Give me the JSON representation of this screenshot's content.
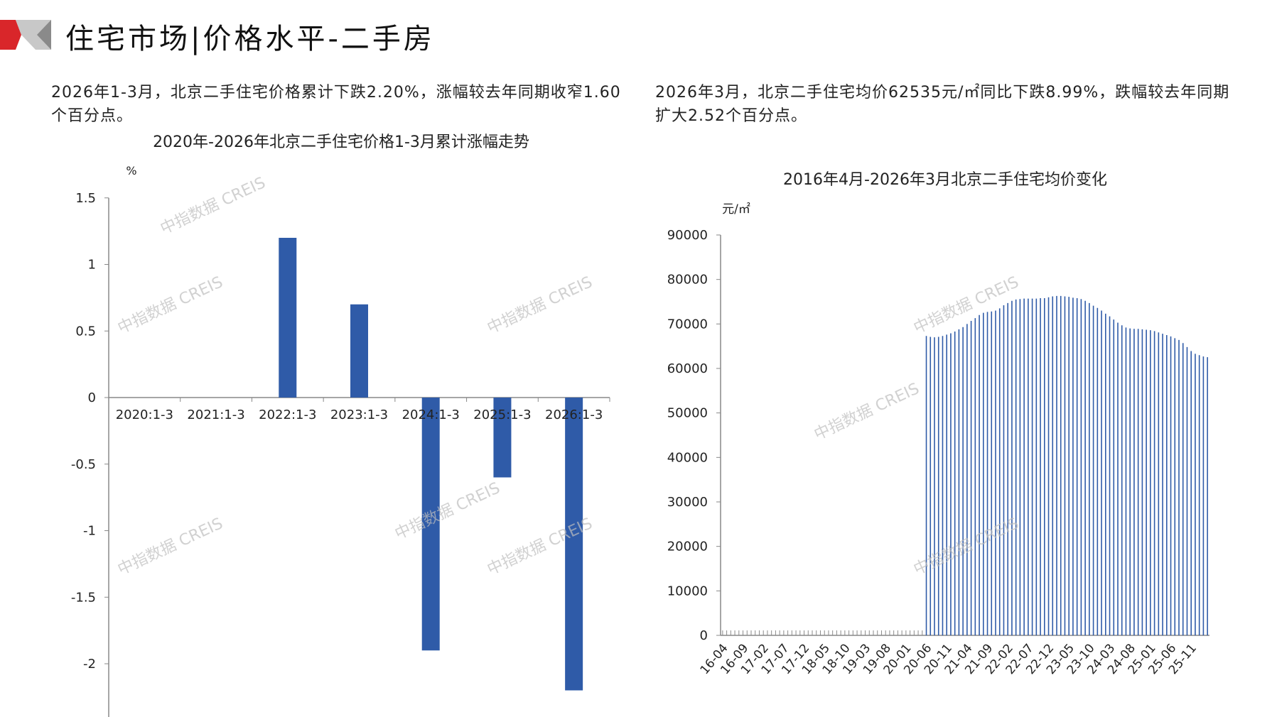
{
  "header": {
    "title": "住宅市场|价格水平-二手房"
  },
  "paragraphs": {
    "left": "2026年1-3月，北京二手住宅价格累计下跌2.20%，涨幅较去年同期收窄1.60个百分点。",
    "right": "2026年3月，北京二手住宅均价62535元/㎡同比下跌8.99%，跌幅较去年同期扩大2.52个百分点。"
  },
  "watermark": "中指数据 CREIS",
  "colors": {
    "bar": "#2f5ba8",
    "logo_red": "#d9262a",
    "logo_gray": "#a6a6a6"
  },
  "chart_data": [
    {
      "type": "bar",
      "title": "2020年-2026年北京二手住宅价格1-3月累计涨幅走势",
      "ylabel": "%",
      "categories": [
        "2020:1-3",
        "2021:1-3",
        "2022:1-3",
        "2023:1-3",
        "2024:1-3",
        "2025:1-3",
        "2026:1-3"
      ],
      "values": [
        0,
        0,
        1.2,
        0.7,
        -1.9,
        -0.6,
        -2.2
      ],
      "ylim": [
        -2.5,
        1.5
      ],
      "yticks": [
        1.5,
        1,
        0.5,
        0,
        -0.5,
        -1,
        -1.5,
        -2
      ],
      "ytick_labels": [
        "1.5",
        "1",
        "0.5",
        "0",
        "-0.5",
        "-1",
        "-1.5",
        "-2"
      ],
      "grid": false
    },
    {
      "type": "bar",
      "title": "2016年4月-2026年3月北京二手住宅均价变化",
      "ylabel": "元/㎡",
      "x_start": "16-04",
      "x_end": "26-03",
      "xtick_labels": [
        "16-04",
        "16-09",
        "17-02",
        "17-07",
        "17-12",
        "18-05",
        "18-10",
        "19-03",
        "19-08",
        "20-01",
        "20-06",
        "20-11",
        "21-04",
        "21-09",
        "22-02",
        "22-07",
        "22-12",
        "23-05",
        "23-10",
        "24-03",
        "24-08",
        "25-01",
        "25-06",
        "25-11"
      ],
      "values_from": "20-06",
      "values": [
        67300,
        67100,
        67000,
        67100,
        67300,
        67600,
        67900,
        68300,
        68800,
        69300,
        70000,
        70700,
        71300,
        72000,
        72500,
        72700,
        72800,
        73000,
        73500,
        74200,
        74700,
        75200,
        75500,
        75600,
        75700,
        75700,
        75700,
        75700,
        75800,
        75800,
        76000,
        76200,
        76300,
        76300,
        76200,
        76100,
        75900,
        75800,
        75600,
        75200,
        74700,
        74100,
        73600,
        73000,
        72300,
        71700,
        71000,
        70300,
        69700,
        69200,
        69000,
        68900,
        68900,
        68800,
        68700,
        68600,
        68400,
        68100,
        67800,
        67500,
        67200,
        66800,
        66400,
        65700,
        64800,
        63900,
        63300,
        63000,
        62700,
        62535
      ],
      "ylim": [
        0,
        90000
      ],
      "yticks": [
        0,
        10000,
        20000,
        30000,
        40000,
        50000,
        60000,
        70000,
        80000,
        90000
      ],
      "ytick_labels": [
        "0",
        "10000",
        "20000",
        "30000",
        "40000",
        "50000",
        "60000",
        "70000",
        "80000",
        "90000"
      ],
      "grid": false
    }
  ]
}
